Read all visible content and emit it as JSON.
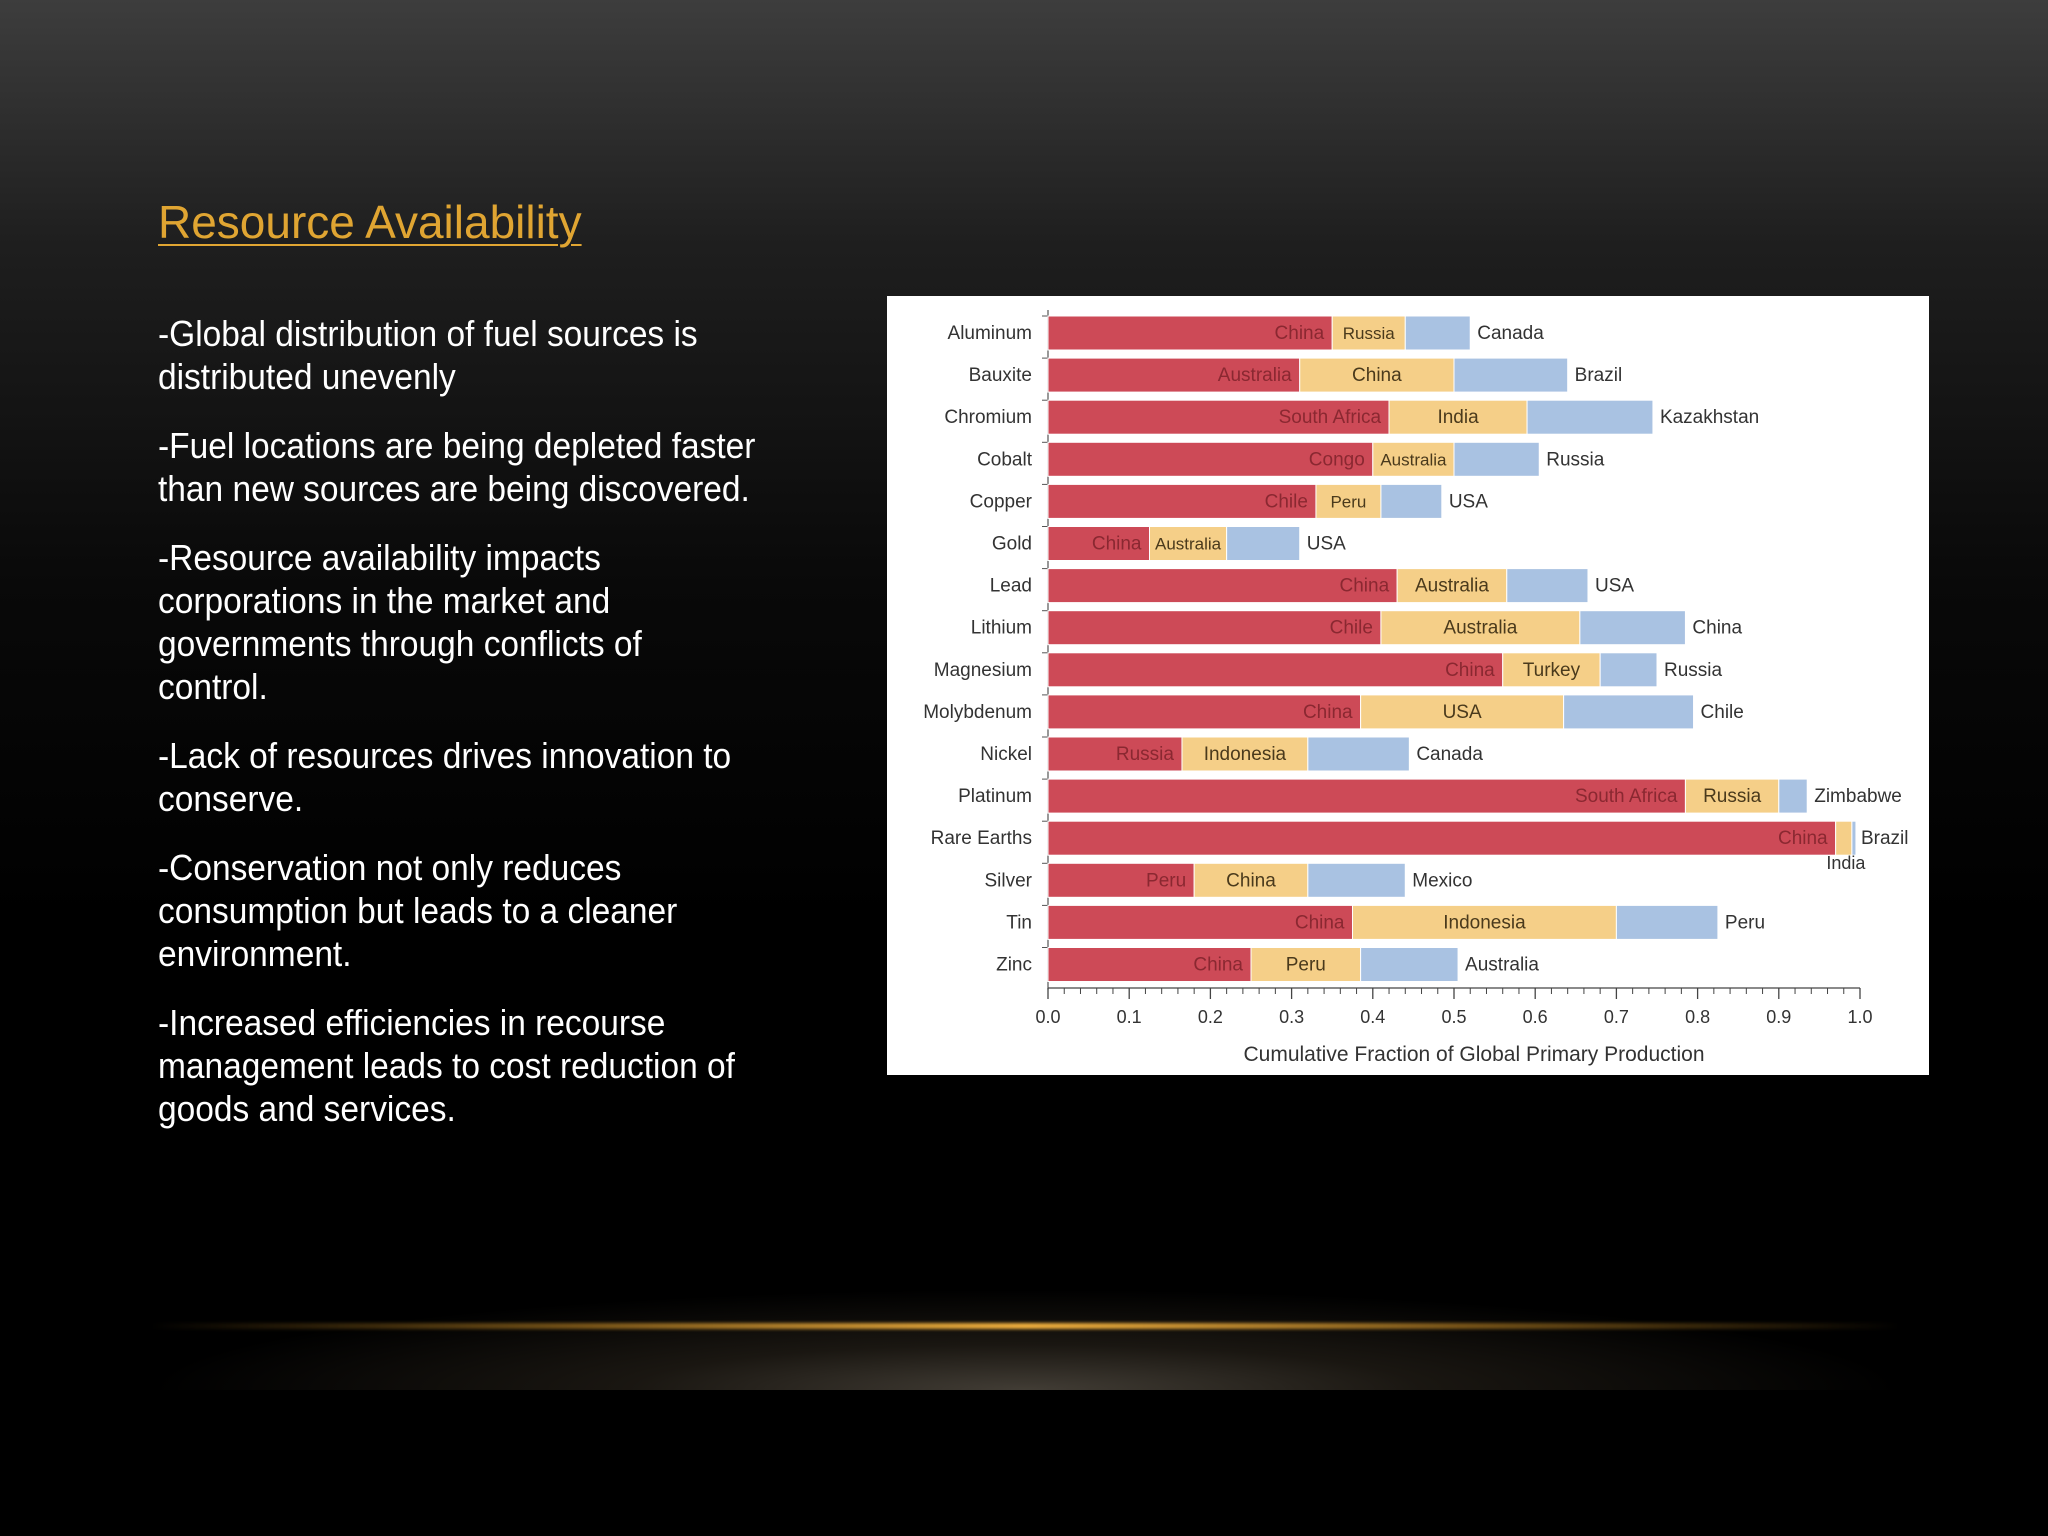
{
  "slide": {
    "title": "Resource Availability",
    "bullets": [
      [
        "-Global distribution of fuel sources is",
        "distributed unevenly"
      ],
      [
        "-Fuel locations are being depleted faster",
        "than new sources are being discovered."
      ],
      [
        "-Resource availability impacts",
        "corporations in the market and",
        "governments through conflicts of",
        "control."
      ],
      [
        "-Lack of resources drives innovation to",
        "conserve."
      ],
      [
        "-Conservation not only reduces",
        "consumption but leads to a cleaner",
        "environment."
      ],
      [
        "-Increased efficiencies in recourse",
        "management leads to cost reduction of",
        "goods and services."
      ]
    ]
  },
  "colors": {
    "title": "#e0a532",
    "first_producer": "#cd4a57",
    "second_producer": "#f5cf88",
    "third_producer": "#a9c2e2",
    "accent_line": "#f2b13e"
  },
  "chart_data": {
    "type": "bar",
    "stacked": true,
    "orientation": "horizontal",
    "xlabel": "Cumulative Fraction of Global Primary Production",
    "xlim": [
      0.0,
      1.0
    ],
    "xticks": [
      "0.0",
      "0.1",
      "0.2",
      "0.3",
      "0.4",
      "0.5",
      "0.6",
      "0.7",
      "0.8",
      "0.9",
      "1.0"
    ],
    "categories": [
      "Aluminum",
      "Bauxite",
      "Chromium",
      "Cobalt",
      "Copper",
      "Gold",
      "Lead",
      "Lithium",
      "Magnesium",
      "Molybdenum",
      "Nickel",
      "Platinum",
      "Rare Earths",
      "Silver",
      "Tin",
      "Zinc"
    ],
    "rows": [
      {
        "name": "Aluminum",
        "segments": [
          {
            "country": "China",
            "value": 0.35
          },
          {
            "country": "Russia",
            "value": 0.09
          },
          {
            "country": "Canada",
            "value": 0.08
          }
        ]
      },
      {
        "name": "Bauxite",
        "segments": [
          {
            "country": "Australia",
            "value": 0.31
          },
          {
            "country": "China",
            "value": 0.19
          },
          {
            "country": "Brazil",
            "value": 0.14
          }
        ]
      },
      {
        "name": "Chromium",
        "segments": [
          {
            "country": "South Africa",
            "value": 0.42
          },
          {
            "country": "India",
            "value": 0.17
          },
          {
            "country": "Kazakhstan",
            "value": 0.155
          }
        ]
      },
      {
        "name": "Cobalt",
        "segments": [
          {
            "country": "Congo",
            "value": 0.4
          },
          {
            "country": "Australia",
            "value": 0.1
          },
          {
            "country": "Russia",
            "value": 0.105
          }
        ]
      },
      {
        "name": "Copper",
        "segments": [
          {
            "country": "Chile",
            "value": 0.33
          },
          {
            "country": "Peru",
            "value": 0.08
          },
          {
            "country": "USA",
            "value": 0.075
          }
        ]
      },
      {
        "name": "Gold",
        "segments": [
          {
            "country": "China",
            "value": 0.125
          },
          {
            "country": "Australia",
            "value": 0.095
          },
          {
            "country": "USA",
            "value": 0.09
          }
        ]
      },
      {
        "name": "Lead",
        "segments": [
          {
            "country": "China",
            "value": 0.43
          },
          {
            "country": "Australia",
            "value": 0.135
          },
          {
            "country": "USA",
            "value": 0.1
          }
        ]
      },
      {
        "name": "Lithium",
        "segments": [
          {
            "country": "Chile",
            "value": 0.41
          },
          {
            "country": "Australia",
            "value": 0.245
          },
          {
            "country": "China",
            "value": 0.13
          }
        ]
      },
      {
        "name": "Magnesium",
        "segments": [
          {
            "country": "China",
            "value": 0.56
          },
          {
            "country": "Turkey",
            "value": 0.12
          },
          {
            "country": "Russia",
            "value": 0.07
          }
        ]
      },
      {
        "name": "Molybdenum",
        "segments": [
          {
            "country": "China",
            "value": 0.385
          },
          {
            "country": "USA",
            "value": 0.25
          },
          {
            "country": "Chile",
            "value": 0.16
          }
        ]
      },
      {
        "name": "Nickel",
        "segments": [
          {
            "country": "Russia",
            "value": 0.165
          },
          {
            "country": "Indonesia",
            "value": 0.155
          },
          {
            "country": "Canada",
            "value": 0.125
          }
        ]
      },
      {
        "name": "Platinum",
        "segments": [
          {
            "country": "South Africa",
            "value": 0.785
          },
          {
            "country": "Russia",
            "value": 0.115
          },
          {
            "country": "Zimbabwe",
            "value": 0.035
          }
        ]
      },
      {
        "name": "Rare Earths",
        "segments": [
          {
            "country": "China",
            "value": 0.97
          },
          {
            "country": "India",
            "value": 0.02
          },
          {
            "country": "Brazil",
            "value": 0.005
          }
        ]
      },
      {
        "name": "Silver",
        "segments": [
          {
            "country": "Peru",
            "value": 0.18
          },
          {
            "country": "China",
            "value": 0.14
          },
          {
            "country": "Mexico",
            "value": 0.12
          }
        ]
      },
      {
        "name": "Tin",
        "segments": [
          {
            "country": "China",
            "value": 0.375
          },
          {
            "country": "Indonesia",
            "value": 0.325
          },
          {
            "country": "Peru",
            "value": 0.125
          }
        ]
      },
      {
        "name": "Zinc",
        "segments": [
          {
            "country": "China",
            "value": 0.25
          },
          {
            "country": "Peru",
            "value": 0.135
          },
          {
            "country": "Australia",
            "value": 0.12
          }
        ]
      }
    ]
  }
}
